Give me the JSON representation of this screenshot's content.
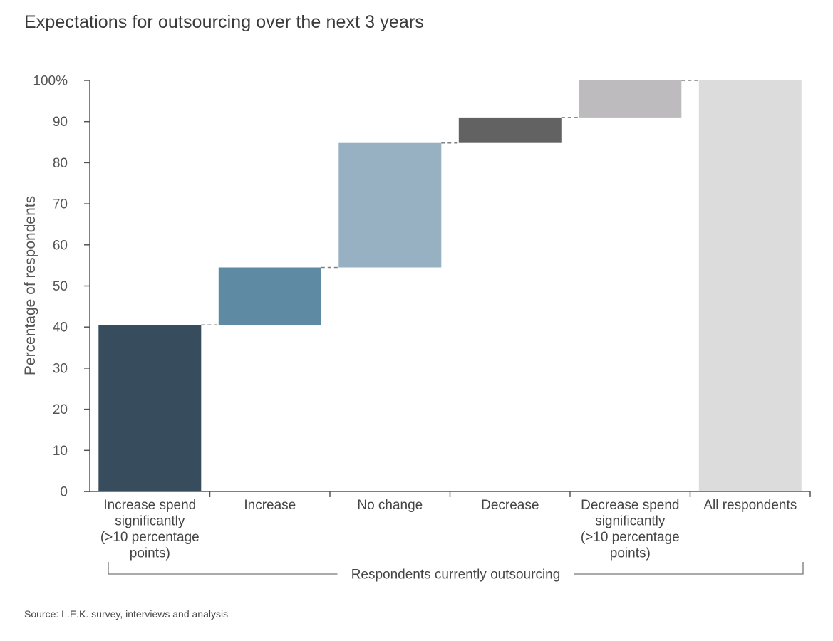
{
  "title": "Expectations for outsourcing over the next 3 years",
  "source": "Source: L.E.K. survey, interviews and analysis",
  "chart_data": {
    "type": "bar",
    "subtype": "waterfall",
    "ylabel": "Percentage of respondents",
    "ylim": [
      0,
      100
    ],
    "yticks": [
      "0",
      "10",
      "20",
      "30",
      "40",
      "50",
      "60",
      "70",
      "80",
      "90",
      "100%"
    ],
    "ytick_values": [
      0,
      10,
      20,
      30,
      40,
      50,
      60,
      70,
      80,
      90,
      100
    ],
    "grid": false,
    "categories": [
      [
        "Increase spend",
        "significantly",
        "(>10 percentage",
        "points)"
      ],
      [
        "Increase"
      ],
      [
        "No change"
      ],
      [
        "Decrease"
      ],
      [
        "Decrease spend",
        "significantly",
        "(>10 percentage",
        "points)"
      ],
      [
        "All respondents"
      ]
    ],
    "bars": [
      {
        "start": 0,
        "end": 40.5,
        "value": 40.5,
        "color": "#374c5c"
      },
      {
        "start": 40.5,
        "end": 54.5,
        "value": 14,
        "color": "#5e8aa3"
      },
      {
        "start": 54.5,
        "end": 84.8,
        "value": 30.3,
        "color": "#97b1c3"
      },
      {
        "start": 84.8,
        "end": 91,
        "value": 6.2,
        "color": "#626262"
      },
      {
        "start": 91,
        "end": 100,
        "value": 9,
        "color": "#bdbbbd"
      },
      {
        "start": 0,
        "end": 100,
        "value": 100,
        "color": "#dcdcdc"
      }
    ],
    "group_bracket": {
      "label": "Respondents currently outsourcing",
      "from_category": 0,
      "to_category": 5
    }
  }
}
